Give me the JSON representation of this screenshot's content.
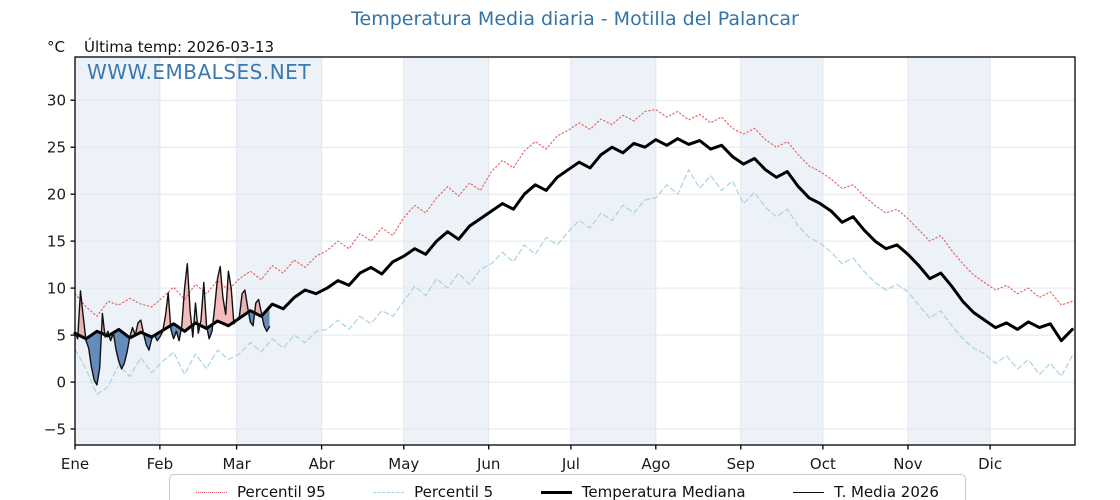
{
  "chart_data": {
    "type": "line",
    "title": "Temperatura Media diaria - Motilla del Palancar",
    "unit_label": "°C",
    "last_temp_label": "Última temp: 2026-03-13",
    "watermark": "WWW.EMBALSES.NET",
    "days_in_year": 365,
    "ylim": [
      -6.7,
      34.6
    ],
    "ylabel": "",
    "xlabel": "",
    "y_ticks": [
      -5,
      0,
      5,
      10,
      15,
      20,
      25,
      30
    ],
    "x_ticks": [
      {
        "label": "Ene",
        "day": 0
      },
      {
        "label": "Feb",
        "day": 31
      },
      {
        "label": "Mar",
        "day": 59
      },
      {
        "label": "Abr",
        "day": 90
      },
      {
        "label": "May",
        "day": 120
      },
      {
        "label": "Jun",
        "day": 151
      },
      {
        "label": "Jul",
        "day": 181
      },
      {
        "label": "Ago",
        "day": 212
      },
      {
        "label": "Sep",
        "day": 243
      },
      {
        "label": "Oct",
        "day": 273
      },
      {
        "label": "Nov",
        "day": 304
      },
      {
        "label": "Dic",
        "day": 334
      }
    ],
    "colors": {
      "title": "#3574a4",
      "watermark": "#2d6ea5",
      "band": "#edf2f9",
      "grid": "#e2e7ee",
      "axis": "#000000",
      "fill_above": "rgba(226,93,93,0.42)",
      "fill_below": "rgba(62,110,168,0.78)"
    },
    "fill_between": {
      "series": "T. Media 2026",
      "reference": "Temperatura Mediana"
    },
    "series": [
      {
        "name": "Percentil 95",
        "color": "#e25d5d",
        "style": "dotted",
        "width": 1.1,
        "days": [
          0,
          4,
          8,
          12,
          16,
          20,
          24,
          28,
          32,
          36,
          40,
          44,
          48,
          52,
          56,
          60,
          64,
          68,
          72,
          76,
          80,
          84,
          88,
          92,
          96,
          100,
          104,
          108,
          112,
          116,
          120,
          124,
          128,
          132,
          136,
          140,
          144,
          148,
          152,
          156,
          160,
          164,
          168,
          172,
          176,
          180,
          184,
          188,
          192,
          196,
          200,
          204,
          208,
          212,
          216,
          220,
          224,
          228,
          232,
          236,
          240,
          244,
          248,
          252,
          256,
          260,
          264,
          268,
          272,
          276,
          280,
          284,
          288,
          292,
          296,
          300,
          304,
          308,
          312,
          316,
          320,
          324,
          328,
          332,
          336,
          340,
          344,
          348,
          352,
          356,
          360,
          364
        ],
        "values": [
          9.4,
          8.0,
          7.0,
          8.6,
          8.2,
          8.9,
          8.3,
          8.0,
          9.0,
          10.1,
          8.8,
          10.4,
          9.4,
          10.8,
          9.8,
          11.0,
          11.8,
          10.9,
          12.4,
          11.6,
          13.0,
          12.2,
          13.4,
          14.0,
          15.0,
          14.2,
          15.8,
          15.0,
          16.4,
          15.6,
          17.5,
          18.8,
          18.0,
          19.6,
          20.8,
          19.8,
          21.2,
          20.4,
          22.4,
          23.6,
          22.8,
          24.6,
          25.6,
          24.8,
          26.2,
          26.8,
          27.6,
          26.9,
          28.0,
          27.4,
          28.4,
          27.8,
          28.8,
          29.0,
          28.2,
          28.8,
          27.9,
          28.5,
          27.6,
          28.2,
          27.0,
          26.4,
          27.0,
          25.8,
          25.0,
          25.6,
          24.2,
          23.0,
          22.4,
          21.6,
          20.6,
          21.0,
          19.8,
          18.8,
          18.0,
          18.4,
          17.4,
          16.2,
          15.0,
          15.6,
          14.0,
          12.6,
          11.4,
          10.6,
          9.8,
          10.3,
          9.4,
          10.0,
          9.0,
          9.6,
          8.2,
          8.6
        ]
      },
      {
        "name": "Percentil 5",
        "color": "#a9d2e4",
        "style": "dashed",
        "width": 1.2,
        "days": [
          0,
          4,
          8,
          12,
          16,
          20,
          24,
          28,
          32,
          36,
          40,
          44,
          48,
          52,
          56,
          60,
          64,
          68,
          72,
          76,
          80,
          84,
          88,
          92,
          96,
          100,
          104,
          108,
          112,
          116,
          120,
          124,
          128,
          132,
          136,
          140,
          144,
          148,
          152,
          156,
          160,
          164,
          168,
          172,
          176,
          180,
          184,
          188,
          192,
          196,
          200,
          204,
          208,
          212,
          216,
          220,
          224,
          228,
          232,
          236,
          240,
          244,
          248,
          252,
          256,
          260,
          264,
          268,
          272,
          276,
          280,
          284,
          288,
          292,
          296,
          300,
          304,
          308,
          312,
          316,
          320,
          324,
          328,
          332,
          336,
          340,
          344,
          348,
          352,
          356,
          360,
          364
        ],
        "values": [
          3.5,
          1.4,
          -1.3,
          -0.5,
          1.8,
          0.6,
          2.6,
          1.0,
          2.2,
          3.2,
          0.8,
          3.0,
          1.4,
          3.4,
          2.4,
          3.0,
          4.2,
          3.2,
          4.6,
          3.6,
          5.0,
          4.2,
          5.4,
          5.6,
          6.6,
          5.6,
          7.0,
          6.2,
          7.6,
          7.0,
          8.6,
          10.2,
          9.2,
          11.0,
          10.0,
          11.6,
          10.4,
          12.0,
          12.6,
          13.8,
          12.8,
          14.6,
          13.6,
          15.4,
          14.6,
          16.0,
          17.2,
          16.4,
          18.0,
          17.2,
          18.8,
          18.0,
          19.4,
          19.6,
          21.0,
          20.0,
          22.6,
          20.6,
          22.0,
          20.4,
          21.4,
          19.0,
          20.2,
          18.6,
          17.6,
          18.4,
          16.6,
          15.4,
          14.8,
          13.8,
          12.6,
          13.2,
          11.8,
          10.6,
          9.8,
          10.4,
          9.6,
          8.2,
          6.8,
          7.6,
          6.0,
          4.6,
          3.6,
          3.0,
          2.0,
          2.8,
          1.4,
          2.4,
          0.8,
          2.0,
          0.6,
          2.8
        ]
      },
      {
        "name": "Temperatura Mediana",
        "color": "#000000",
        "style": "solid",
        "width": 3,
        "days": [
          0,
          4,
          8,
          12,
          16,
          20,
          24,
          28,
          32,
          36,
          40,
          44,
          48,
          52,
          56,
          60,
          64,
          68,
          72,
          76,
          80,
          84,
          88,
          92,
          96,
          100,
          104,
          108,
          112,
          116,
          120,
          124,
          128,
          132,
          136,
          140,
          144,
          148,
          152,
          156,
          160,
          164,
          168,
          172,
          176,
          180,
          184,
          188,
          192,
          196,
          200,
          204,
          208,
          212,
          216,
          220,
          224,
          228,
          232,
          236,
          240,
          244,
          248,
          252,
          256,
          260,
          264,
          268,
          272,
          276,
          280,
          284,
          288,
          292,
          296,
          300,
          304,
          308,
          312,
          316,
          320,
          324,
          328,
          332,
          336,
          340,
          344,
          348,
          352,
          356,
          360,
          364
        ],
        "values": [
          5.2,
          4.6,
          5.4,
          4.9,
          5.6,
          4.7,
          5.3,
          4.8,
          5.5,
          6.2,
          5.4,
          6.3,
          5.7,
          6.5,
          6.0,
          6.8,
          7.6,
          7.0,
          8.3,
          7.8,
          9.0,
          9.8,
          9.4,
          10.0,
          10.8,
          10.3,
          11.6,
          12.2,
          11.5,
          12.8,
          13.4,
          14.2,
          13.6,
          15.0,
          16.0,
          15.2,
          16.6,
          17.4,
          18.2,
          19.0,
          18.4,
          20.0,
          21.0,
          20.4,
          21.8,
          22.6,
          23.4,
          22.8,
          24.2,
          25.0,
          24.4,
          25.4,
          25.0,
          25.8,
          25.2,
          25.9,
          25.3,
          25.7,
          24.8,
          25.2,
          24.0,
          23.2,
          23.8,
          22.6,
          21.8,
          22.4,
          20.8,
          19.6,
          19.0,
          18.2,
          17.0,
          17.6,
          16.2,
          15.0,
          14.2,
          14.6,
          13.6,
          12.4,
          11.0,
          11.6,
          10.2,
          8.6,
          7.4,
          6.6,
          5.8,
          6.3,
          5.6,
          6.4,
          5.8,
          6.2,
          4.4,
          5.6
        ]
      },
      {
        "name": "T. Media 2026",
        "color": "#111111",
        "style": "solid",
        "width": 1.4,
        "days": [
          0,
          1,
          2,
          3,
          4,
          5,
          6,
          7,
          8,
          9,
          10,
          11,
          12,
          13,
          14,
          15,
          16,
          17,
          18,
          19,
          20,
          21,
          22,
          23,
          24,
          25,
          26,
          27,
          28,
          29,
          30,
          31,
          32,
          33,
          34,
          35,
          36,
          37,
          38,
          39,
          40,
          41,
          42,
          43,
          44,
          45,
          46,
          47,
          48,
          49,
          50,
          51,
          52,
          53,
          54,
          55,
          56,
          57,
          58,
          59,
          60,
          61,
          62,
          63,
          64,
          65,
          66,
          67,
          68,
          69,
          70,
          71
        ],
        "values": [
          5.3,
          4.6,
          9.7,
          7.0,
          4.4,
          3.6,
          1.6,
          0.2,
          -0.3,
          1.5,
          7.3,
          4.8,
          5.4,
          4.4,
          5.2,
          3.4,
          2.2,
          1.4,
          2.0,
          3.2,
          4.8,
          5.8,
          5.0,
          6.3,
          6.6,
          5.2,
          4.0,
          3.4,
          4.6,
          5.0,
          4.4,
          4.8,
          5.4,
          7.0,
          9.5,
          5.6,
          4.6,
          5.4,
          4.4,
          6.0,
          10.0,
          12.6,
          7.6,
          4.8,
          8.4,
          5.2,
          6.6,
          10.6,
          6.0,
          4.6,
          5.4,
          8.0,
          11.0,
          12.3,
          9.0,
          7.2,
          11.8,
          10.0,
          6.2,
          6.6,
          7.0,
          9.4,
          9.8,
          8.0,
          6.4,
          6.0,
          8.4,
          8.8,
          7.4,
          6.0,
          5.4,
          5.9
        ]
      }
    ]
  }
}
